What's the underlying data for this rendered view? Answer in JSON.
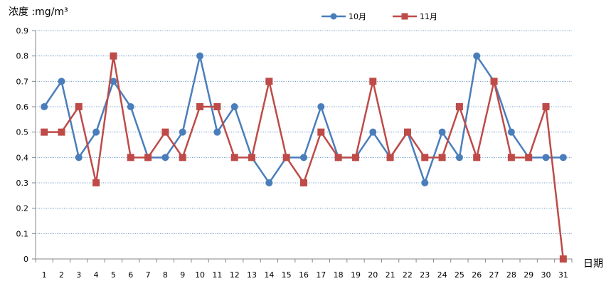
{
  "chart_data": {
    "type": "line",
    "title": "",
    "ylabel": "浓度 :mg/m³",
    "xlabel": "日期",
    "ylim": [
      0,
      0.9
    ],
    "yticks": [
      "0",
      "0.1",
      "0.2",
      "0.3",
      "0.4",
      "0.5",
      "0.6",
      "0.7",
      "0.8",
      "0.9"
    ],
    "x": [
      "1",
      "2",
      "3",
      "4",
      "5",
      "6",
      "7",
      "8",
      "9",
      "10",
      "11",
      "12",
      "13",
      "14",
      "15",
      "16",
      "17",
      "18",
      "19",
      "20",
      "21",
      "22",
      "23",
      "24",
      "25",
      "26",
      "27",
      "28",
      "29",
      "30",
      "31"
    ],
    "grid": "horizontal dotted",
    "legend_position": "top-center",
    "series": [
      {
        "name": "10月",
        "color": "#4a7ebb",
        "marker": "circle",
        "values": [
          0.6,
          0.7,
          0.4,
          0.5,
          0.7,
          0.6,
          0.4,
          0.4,
          0.5,
          0.8,
          0.5,
          0.6,
          0.4,
          0.3,
          0.4,
          0.4,
          0.6,
          0.4,
          0.4,
          0.5,
          0.4,
          0.5,
          0.3,
          0.5,
          0.4,
          0.8,
          0.7,
          0.5,
          0.4,
          0.4,
          0.4
        ]
      },
      {
        "name": "11月",
        "color": "#be4b48",
        "marker": "square",
        "values": [
          0.5,
          0.5,
          0.6,
          0.3,
          0.8,
          0.4,
          0.4,
          0.5,
          0.4,
          0.6,
          0.6,
          0.4,
          0.4,
          0.7,
          0.4,
          0.3,
          0.5,
          0.4,
          0.4,
          0.7,
          0.4,
          0.5,
          0.4,
          0.4,
          0.6,
          0.4,
          0.7,
          0.4,
          0.4,
          0.6,
          0
        ]
      }
    ]
  }
}
